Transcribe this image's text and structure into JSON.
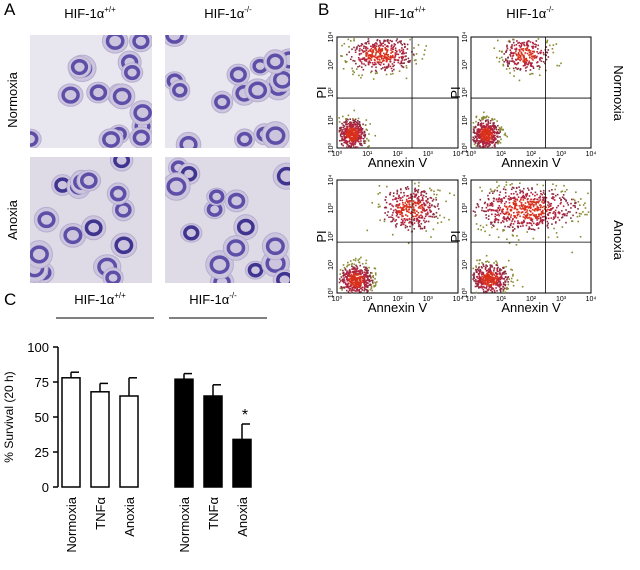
{
  "panel_a": {
    "label": "A",
    "columns": [
      {
        "name": "HIF-1α",
        "sup": "+/+"
      },
      {
        "name": "HIF-1α",
        "sup": "-/-"
      }
    ],
    "rows": [
      "Normoxia",
      "Anoxia"
    ]
  },
  "panel_b": {
    "label": "B",
    "columns": [
      {
        "name": "HIF-1α",
        "sup": "+/+"
      },
      {
        "name": "HIF-1α",
        "sup": "-/-"
      }
    ],
    "rows": [
      "Normoxia",
      "Anoxia"
    ],
    "x_label": "Annexin V",
    "y_label": "PI",
    "ticks": [
      "10⁰",
      "10¹",
      "10²",
      "10³",
      "10⁴"
    ]
  },
  "chart_data": {
    "type": "bar",
    "label": "C",
    "ylabel": "% Survival (20 h)",
    "categories": [
      "Normoxia",
      "TNFα",
      "Anoxia"
    ],
    "series": [
      {
        "name": "HIF-1α",
        "name_sup": "+/+",
        "color": "#ffffff",
        "values": [
          78,
          68,
          65
        ],
        "errors": [
          4,
          6,
          13
        ]
      },
      {
        "name": "HIF-1α",
        "name_sup": "-/-",
        "color": "#000000",
        "values": [
          77,
          65,
          34
        ],
        "errors": [
          4,
          8,
          11
        ],
        "annotations": [
          null,
          null,
          "*"
        ]
      }
    ],
    "ylim": [
      0,
      100
    ],
    "yticks": [
      0,
      25,
      50,
      75,
      100
    ]
  }
}
